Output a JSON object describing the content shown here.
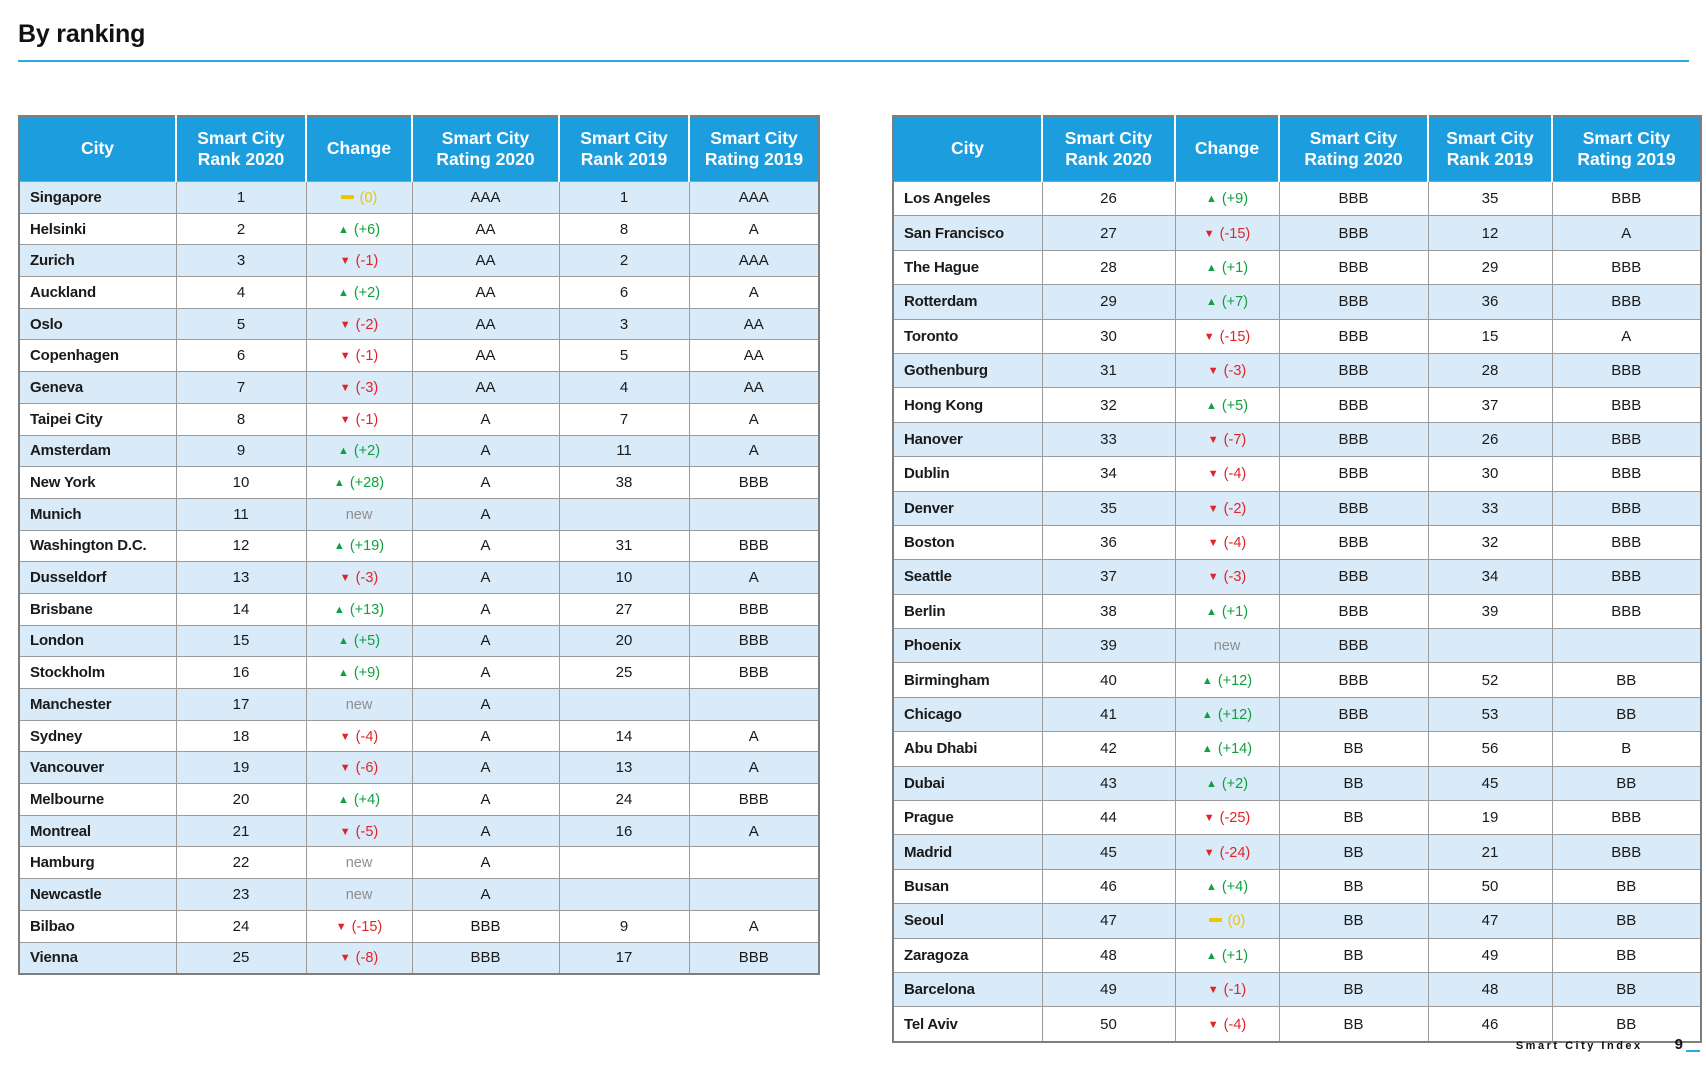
{
  "page": {
    "title": "By ranking",
    "footer_label": "Smart City Index",
    "footer_page": "9"
  },
  "colors": {
    "header_blue": "#1B9DDE",
    "row_alt_blue": "#D9EAF8",
    "up_green": "#0DA13F",
    "down_red": "#E02428",
    "same_yellow": "#EFC400",
    "new_gray": "#8E8E8E",
    "rule_cyan": "#29ABE2",
    "border_gray": "#9B9B9B"
  },
  "columns": [
    "City",
    "Smart City Rank 2020",
    "Change",
    "Smart City Rating 2020",
    "Smart City Rank 2019",
    "Smart City Rating 2019"
  ],
  "tables": [
    {
      "name": "ranks-1-25",
      "rows": [
        {
          "city": "Singapore",
          "rank_2020": "1",
          "change_dir": "same",
          "change_label": "(0)",
          "rating_2020": "AAA",
          "rank_2019": "1",
          "rating_2019": "AAA"
        },
        {
          "city": "Helsinki",
          "rank_2020": "2",
          "change_dir": "up",
          "change_label": "(+6)",
          "rating_2020": "AA",
          "rank_2019": "8",
          "rating_2019": "A"
        },
        {
          "city": "Zurich",
          "rank_2020": "3",
          "change_dir": "down",
          "change_label": "(-1)",
          "rating_2020": "AA",
          "rank_2019": "2",
          "rating_2019": "AAA"
        },
        {
          "city": "Auckland",
          "rank_2020": "4",
          "change_dir": "up",
          "change_label": "(+2)",
          "rating_2020": "AA",
          "rank_2019": "6",
          "rating_2019": "A"
        },
        {
          "city": "Oslo",
          "rank_2020": "5",
          "change_dir": "down",
          "change_label": "(-2)",
          "rating_2020": "AA",
          "rank_2019": "3",
          "rating_2019": "AA"
        },
        {
          "city": "Copenhagen",
          "rank_2020": "6",
          "change_dir": "down",
          "change_label": "(-1)",
          "rating_2020": "AA",
          "rank_2019": "5",
          "rating_2019": "AA"
        },
        {
          "city": "Geneva",
          "rank_2020": "7",
          "change_dir": "down",
          "change_label": "(-3)",
          "rating_2020": "AA",
          "rank_2019": "4",
          "rating_2019": "AA"
        },
        {
          "city": "Taipei City",
          "rank_2020": "8",
          "change_dir": "down",
          "change_label": "(-1)",
          "rating_2020": "A",
          "rank_2019": "7",
          "rating_2019": "A"
        },
        {
          "city": "Amsterdam",
          "rank_2020": "9",
          "change_dir": "up",
          "change_label": "(+2)",
          "rating_2020": "A",
          "rank_2019": "11",
          "rating_2019": "A"
        },
        {
          "city": "New York",
          "rank_2020": "10",
          "change_dir": "up",
          "change_label": "(+28)",
          "rating_2020": "A",
          "rank_2019": "38",
          "rating_2019": "BBB"
        },
        {
          "city": "Munich",
          "rank_2020": "11",
          "change_dir": "new",
          "change_label": "new",
          "rating_2020": "A",
          "rank_2019": "",
          "rating_2019": ""
        },
        {
          "city": "Washington D.C.",
          "rank_2020": "12",
          "change_dir": "up",
          "change_label": "(+19)",
          "rating_2020": "A",
          "rank_2019": "31",
          "rating_2019": "BBB"
        },
        {
          "city": "Dusseldorf",
          "rank_2020": "13",
          "change_dir": "down",
          "change_label": "(-3)",
          "rating_2020": "A",
          "rank_2019": "10",
          "rating_2019": "A"
        },
        {
          "city": "Brisbane",
          "rank_2020": "14",
          "change_dir": "up",
          "change_label": "(+13)",
          "rating_2020": "A",
          "rank_2019": "27",
          "rating_2019": "BBB"
        },
        {
          "city": "London",
          "rank_2020": "15",
          "change_dir": "up",
          "change_label": "(+5)",
          "rating_2020": "A",
          "rank_2019": "20",
          "rating_2019": "BBB"
        },
        {
          "city": "Stockholm",
          "rank_2020": "16",
          "change_dir": "up",
          "change_label": "(+9)",
          "rating_2020": "A",
          "rank_2019": "25",
          "rating_2019": "BBB"
        },
        {
          "city": "Manchester",
          "rank_2020": "17",
          "change_dir": "new",
          "change_label": "new",
          "rating_2020": "A",
          "rank_2019": "",
          "rating_2019": ""
        },
        {
          "city": "Sydney",
          "rank_2020": "18",
          "change_dir": "down",
          "change_label": "(-4)",
          "rating_2020": "A",
          "rank_2019": "14",
          "rating_2019": "A"
        },
        {
          "city": "Vancouver",
          "rank_2020": "19",
          "change_dir": "down",
          "change_label": "(-6)",
          "rating_2020": "A",
          "rank_2019": "13",
          "rating_2019": "A"
        },
        {
          "city": "Melbourne",
          "rank_2020": "20",
          "change_dir": "up",
          "change_label": "(+4)",
          "rating_2020": "A",
          "rank_2019": "24",
          "rating_2019": "BBB"
        },
        {
          "city": "Montreal",
          "rank_2020": "21",
          "change_dir": "down",
          "change_label": "(-5)",
          "rating_2020": "A",
          "rank_2019": "16",
          "rating_2019": "A"
        },
        {
          "city": "Hamburg",
          "rank_2020": "22",
          "change_dir": "new",
          "change_label": "new",
          "rating_2020": "A",
          "rank_2019": "",
          "rating_2019": ""
        },
        {
          "city": "Newcastle",
          "rank_2020": "23",
          "change_dir": "new",
          "change_label": "new",
          "rating_2020": "A",
          "rank_2019": "",
          "rating_2019": ""
        },
        {
          "city": "Bilbao",
          "rank_2020": "24",
          "change_dir": "down",
          "change_label": "(-15)",
          "rating_2020": "BBB",
          "rank_2019": "9",
          "rating_2019": "A"
        },
        {
          "city": "Vienna",
          "rank_2020": "25",
          "change_dir": "down",
          "change_label": "(-8)",
          "rating_2020": "BBB",
          "rank_2019": "17",
          "rating_2019": "BBB"
        }
      ]
    },
    {
      "name": "ranks-26-50",
      "rows": [
        {
          "city": "Los Angeles",
          "rank_2020": "26",
          "change_dir": "up",
          "change_label": "(+9)",
          "rating_2020": "BBB",
          "rank_2019": "35",
          "rating_2019": "BBB"
        },
        {
          "city": "San Francisco",
          "rank_2020": "27",
          "change_dir": "down",
          "change_label": "(-15)",
          "rating_2020": "BBB",
          "rank_2019": "12",
          "rating_2019": "A"
        },
        {
          "city": "The Hague",
          "rank_2020": "28",
          "change_dir": "up",
          "change_label": "(+1)",
          "rating_2020": "BBB",
          "rank_2019": "29",
          "rating_2019": "BBB"
        },
        {
          "city": "Rotterdam",
          "rank_2020": "29",
          "change_dir": "up",
          "change_label": "(+7)",
          "rating_2020": "BBB",
          "rank_2019": "36",
          "rating_2019": "BBB"
        },
        {
          "city": "Toronto",
          "rank_2020": "30",
          "change_dir": "down",
          "change_label": "(-15)",
          "rating_2020": "BBB",
          "rank_2019": "15",
          "rating_2019": "A"
        },
        {
          "city": "Gothenburg",
          "rank_2020": "31",
          "change_dir": "down",
          "change_label": "(-3)",
          "rating_2020": "BBB",
          "rank_2019": "28",
          "rating_2019": "BBB"
        },
        {
          "city": "Hong Kong",
          "rank_2020": "32",
          "change_dir": "up",
          "change_label": "(+5)",
          "rating_2020": "BBB",
          "rank_2019": "37",
          "rating_2019": "BBB"
        },
        {
          "city": "Hanover",
          "rank_2020": "33",
          "change_dir": "down",
          "change_label": "(-7)",
          "rating_2020": "BBB",
          "rank_2019": "26",
          "rating_2019": "BBB"
        },
        {
          "city": "Dublin",
          "rank_2020": "34",
          "change_dir": "down",
          "change_label": "(-4)",
          "rating_2020": "BBB",
          "rank_2019": "30",
          "rating_2019": "BBB"
        },
        {
          "city": "Denver",
          "rank_2020": "35",
          "change_dir": "down",
          "change_label": "(-2)",
          "rating_2020": "BBB",
          "rank_2019": "33",
          "rating_2019": "BBB"
        },
        {
          "city": "Boston",
          "rank_2020": "36",
          "change_dir": "down",
          "change_label": "(-4)",
          "rating_2020": "BBB",
          "rank_2019": "32",
          "rating_2019": "BBB"
        },
        {
          "city": "Seattle",
          "rank_2020": "37",
          "change_dir": "down",
          "change_label": "(-3)",
          "rating_2020": "BBB",
          "rank_2019": "34",
          "rating_2019": "BBB"
        },
        {
          "city": "Berlin",
          "rank_2020": "38",
          "change_dir": "up",
          "change_label": "(+1)",
          "rating_2020": "BBB",
          "rank_2019": "39",
          "rating_2019": "BBB"
        },
        {
          "city": "Phoenix",
          "rank_2020": "39",
          "change_dir": "new",
          "change_label": "new",
          "rating_2020": "BBB",
          "rank_2019": "",
          "rating_2019": ""
        },
        {
          "city": "Birmingham",
          "rank_2020": "40",
          "change_dir": "up",
          "change_label": "(+12)",
          "rating_2020": "BBB",
          "rank_2019": "52",
          "rating_2019": "BB"
        },
        {
          "city": "Chicago",
          "rank_2020": "41",
          "change_dir": "up",
          "change_label": "(+12)",
          "rating_2020": "BBB",
          "rank_2019": "53",
          "rating_2019": "BB"
        },
        {
          "city": "Abu Dhabi",
          "rank_2020": "42",
          "change_dir": "up",
          "change_label": "(+14)",
          "rating_2020": "BB",
          "rank_2019": "56",
          "rating_2019": "B"
        },
        {
          "city": "Dubai",
          "rank_2020": "43",
          "change_dir": "up",
          "change_label": "(+2)",
          "rating_2020": "BB",
          "rank_2019": "45",
          "rating_2019": "BB"
        },
        {
          "city": "Prague",
          "rank_2020": "44",
          "change_dir": "down",
          "change_label": "(-25)",
          "rating_2020": "BB",
          "rank_2019": "19",
          "rating_2019": "BBB"
        },
        {
          "city": "Madrid",
          "rank_2020": "45",
          "change_dir": "down",
          "change_label": "(-24)",
          "rating_2020": "BB",
          "rank_2019": "21",
          "rating_2019": "BBB"
        },
        {
          "city": "Busan",
          "rank_2020": "46",
          "change_dir": "up",
          "change_label": "(+4)",
          "rating_2020": "BB",
          "rank_2019": "50",
          "rating_2019": "BB"
        },
        {
          "city": "Seoul",
          "rank_2020": "47",
          "change_dir": "same",
          "change_label": "(0)",
          "rating_2020": "BB",
          "rank_2019": "47",
          "rating_2019": "BB"
        },
        {
          "city": "Zaragoza",
          "rank_2020": "48",
          "change_dir": "up",
          "change_label": "(+1)",
          "rating_2020": "BB",
          "rank_2019": "49",
          "rating_2019": "BB"
        },
        {
          "city": "Barcelona",
          "rank_2020": "49",
          "change_dir": "down",
          "change_label": "(-1)",
          "rating_2020": "BB",
          "rank_2019": "48",
          "rating_2019": "BB"
        },
        {
          "city": "Tel Aviv",
          "rank_2020": "50",
          "change_dir": "down",
          "change_label": "(-4)",
          "rating_2020": "BB",
          "rank_2019": "46",
          "rating_2019": "BB"
        }
      ]
    }
  ]
}
